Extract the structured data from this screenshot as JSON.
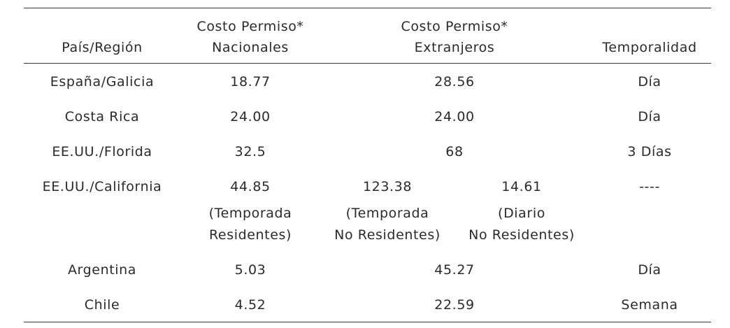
{
  "table": {
    "headers": {
      "country": "País/Región",
      "nationals_line1": "Costo Permiso*",
      "nationals_line2": "Nacionales",
      "foreigners_line1": "Costo Permiso*",
      "foreigners_line2": "Extranjeros",
      "period": "Temporalidad"
    },
    "rows": [
      {
        "country": "España/Galicia",
        "nationals": "18.77",
        "foreigners": "28.56",
        "period": "Día"
      },
      {
        "country": "Costa Rica",
        "nationals": "24.00",
        "foreigners": "24.00",
        "period": "Día"
      },
      {
        "country": "EE.UU./Florida",
        "nationals": "32.5",
        "foreigners": "68",
        "period": "3 Días"
      },
      {
        "country": "Argentina",
        "nationals": "5.03",
        "foreigners": "45.27",
        "period": "Día"
      },
      {
        "country": "Chile",
        "nationals": "4.52",
        "foreigners": "22.59",
        "period": "Semana"
      }
    ],
    "california": {
      "country": "EE.UU./California",
      "nationals": "44.85",
      "nationals_note_1": "(Temporada",
      "nationals_note_2": "Residentes)",
      "foreigners_season": "123.38",
      "foreigners_season_note_1": "(Temporada",
      "foreigners_season_note_2": "No Residentes)",
      "foreigners_daily": "14.61",
      "foreigners_daily_note_1": "(Diario",
      "foreigners_daily_note_2": "No Residentes)",
      "period": "----"
    }
  }
}
